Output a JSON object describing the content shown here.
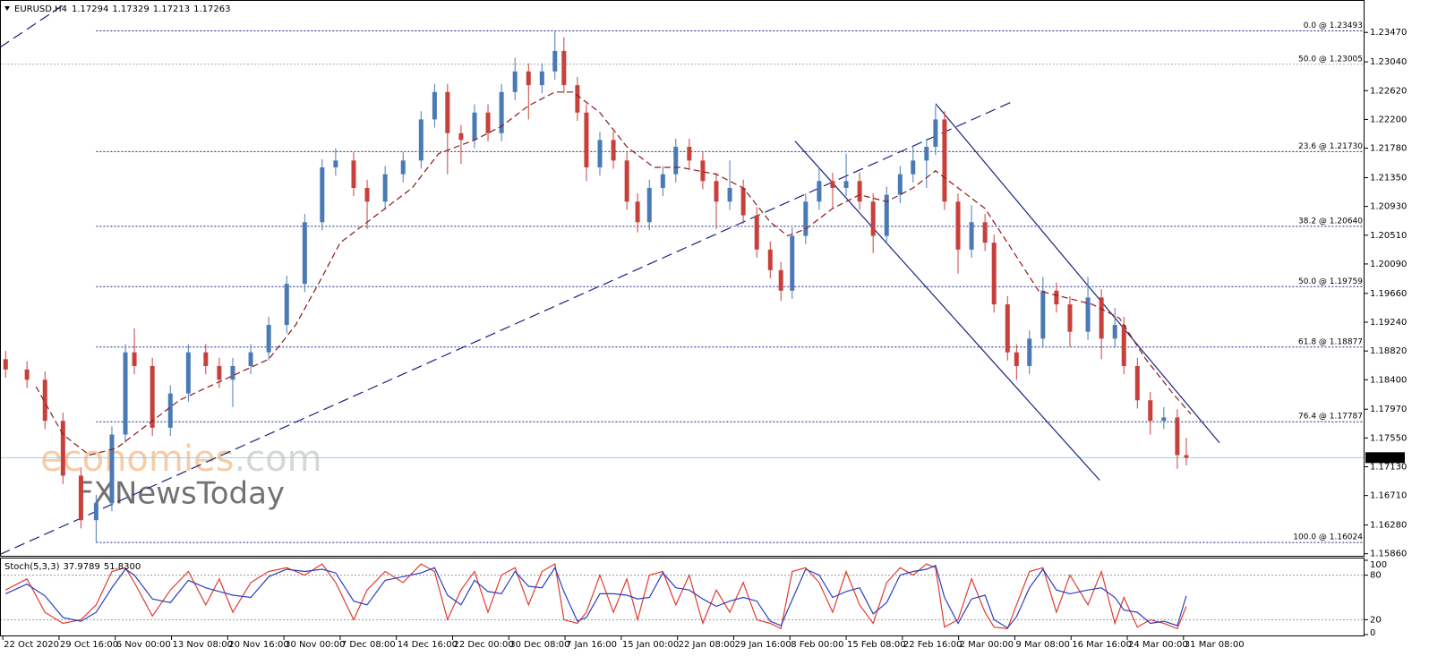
{
  "header": {
    "symbol": "EURUSD,H4",
    "ohlc": [
      1.17294,
      1.17329,
      1.17213,
      1.17263
    ]
  },
  "chart_data": [
    {
      "type": "candlestick",
      "up_color": "#4a7ab5",
      "down_color": "#c8403c",
      "last_price_color": "#8fd3e8",
      "xlim": [
        -0.05,
        24.22
      ],
      "ylim": [
        1.1583,
        1.2393
      ],
      "xticks": [
        {
          "value": 0,
          "label": "22 Oct 2020"
        },
        {
          "value": 1,
          "label": "29 Oct 16:00"
        },
        {
          "value": 2,
          "label": "6 Nov 00:00"
        },
        {
          "value": 3,
          "label": "13 Nov 08:00"
        },
        {
          "value": 4,
          "label": "20 Nov 16:00"
        },
        {
          "value": 5,
          "label": "30 Nov 00:00"
        },
        {
          "value": 6,
          "label": "7 Dec 08:00"
        },
        {
          "value": 7,
          "label": "14 Dec 16:00"
        },
        {
          "value": 8,
          "label": "22 Dec 00:00"
        },
        {
          "value": 9,
          "label": "30 Dec 08:00"
        },
        {
          "value": 10,
          "label": "7 Jan 16:00"
        },
        {
          "value": 11,
          "label": "15 Jan 00:00"
        },
        {
          "value": 12,
          "label": "22 Jan 08:00"
        },
        {
          "value": 13,
          "label": "29 Jan 16:00"
        },
        {
          "value": 14,
          "label": "8 Feb 00:00"
        },
        {
          "value": 15,
          "label": "15 Feb 08:00"
        },
        {
          "value": 16,
          "label": "22 Feb 16:00"
        },
        {
          "value": 17,
          "label": "2 Mar 00:00"
        },
        {
          "value": 18,
          "label": "9 Mar 08:00"
        },
        {
          "value": 19,
          "label": "16 Mar 16:00"
        },
        {
          "value": 20,
          "label": "24 Mar 00:00"
        },
        {
          "value": 21,
          "label": "31 Mar 08:00"
        }
      ],
      "yticks": [
        {
          "value": 1.1586,
          "label": "1.15860"
        },
        {
          "value": 1.1628,
          "label": "1.16280"
        },
        {
          "value": 1.1671,
          "label": "1.16710"
        },
        {
          "value": 1.1713,
          "label": "1.17130"
        },
        {
          "value": 1.1755,
          "label": "1.17550"
        },
        {
          "value": 1.1797,
          "label": "1.17970"
        },
        {
          "value": 1.184,
          "label": "1.18400"
        },
        {
          "value": 1.1882,
          "label": "1.18820"
        },
        {
          "value": 1.1924,
          "label": "1.19240"
        },
        {
          "value": 1.1966,
          "label": "1.19660"
        },
        {
          "value": 1.2009,
          "label": "1.20090"
        },
        {
          "value": 1.2051,
          "label": "1.20510"
        },
        {
          "value": 1.2093,
          "label": "1.20930"
        },
        {
          "value": 1.2135,
          "label": "1.21350"
        },
        {
          "value": 1.2178,
          "label": "1.21780"
        },
        {
          "value": 1.222,
          "label": "1.22200"
        },
        {
          "value": 1.2262,
          "label": "1.22620"
        },
        {
          "value": 1.2304,
          "label": "1.23040"
        },
        {
          "value": 1.2347,
          "label": "1.23470"
        }
      ],
      "x": [
        0.05,
        0.43,
        0.75,
        1.07,
        1.39,
        1.66,
        1.94,
        2.18,
        2.34,
        2.66,
        2.98,
        3.3,
        3.61,
        3.85,
        4.09,
        4.41,
        4.73,
        5.05,
        5.37,
        5.68,
        5.92,
        6.24,
        6.48,
        6.8,
        7.12,
        7.44,
        7.68,
        7.91,
        8.15,
        8.39,
        8.63,
        8.87,
        9.11,
        9.35,
        9.59,
        9.82,
        9.98,
        10.22,
        10.38,
        10.62,
        10.86,
        11.1,
        11.29,
        11.5,
        11.74,
        11.97,
        12.21,
        12.45,
        12.69,
        12.93,
        13.17,
        13.41,
        13.65,
        13.84,
        14.04,
        14.28,
        14.52,
        14.76,
        15.0,
        15.24,
        15.48,
        15.72,
        15.96,
        16.19,
        16.43,
        16.59,
        16.75,
        16.99,
        17.23,
        17.47,
        17.63,
        17.87,
        18.03,
        18.26,
        18.5,
        18.74,
        18.98,
        19.3,
        19.54,
        19.78,
        19.94,
        20.18,
        20.41,
        20.65,
        20.89,
        21.05
      ],
      "open": [
        1.187,
        1.1855,
        1.184,
        1.178,
        1.17,
        1.1635,
        1.166,
        1.176,
        1.188,
        1.186,
        1.177,
        1.182,
        1.188,
        1.186,
        1.184,
        1.186,
        1.188,
        1.192,
        1.198,
        1.207,
        1.215,
        1.216,
        1.212,
        1.21,
        1.214,
        1.216,
        1.222,
        1.226,
        1.22,
        1.219,
        1.223,
        1.22,
        1.226,
        1.229,
        1.227,
        1.229,
        1.232,
        1.227,
        1.223,
        1.215,
        1.219,
        1.216,
        1.21,
        1.207,
        1.212,
        1.214,
        1.218,
        1.216,
        1.213,
        1.21,
        1.212,
        1.208,
        1.203,
        1.2,
        1.197,
        1.205,
        1.21,
        1.213,
        1.212,
        1.213,
        1.21,
        1.205,
        1.211,
        1.214,
        1.216,
        1.218,
        1.222,
        1.21,
        1.203,
        1.207,
        1.204,
        1.195,
        1.188,
        1.186,
        1.19,
        1.197,
        1.195,
        1.191,
        1.196,
        1.19,
        1.192,
        1.186,
        1.181,
        1.178,
        1.1785,
        1.173
      ],
      "high": [
        1.1882,
        1.1867,
        1.1852,
        1.1792,
        1.1712,
        1.1672,
        1.1772,
        1.1892,
        1.1915,
        1.1872,
        1.1832,
        1.1892,
        1.1892,
        1.1872,
        1.1872,
        1.1892,
        1.1932,
        1.1992,
        1.2082,
        1.2162,
        1.2178,
        1.2172,
        1.2132,
        1.2152,
        1.2172,
        1.2232,
        1.2272,
        1.2272,
        1.2212,
        1.2242,
        1.2242,
        1.2272,
        1.231,
        1.2302,
        1.2302,
        1.2349,
        1.234,
        1.2282,
        1.2242,
        1.2202,
        1.2202,
        1.2172,
        1.2112,
        1.2132,
        1.2152,
        1.2192,
        1.2192,
        1.2172,
        1.2142,
        1.216,
        1.2132,
        1.2092,
        1.2042,
        1.2012,
        1.2062,
        1.2112,
        1.215,
        1.2142,
        1.217,
        1.2142,
        1.2112,
        1.2122,
        1.2152,
        1.218,
        1.2192,
        1.224,
        1.2232,
        1.2112,
        1.2095,
        1.2082,
        1.2052,
        1.1962,
        1.1892,
        1.1912,
        1.199,
        1.1982,
        1.1962,
        1.199,
        1.1972,
        1.1945,
        1.1932,
        1.1872,
        1.1822,
        1.18,
        1.1797,
        1.1755
      ],
      "low": [
        1.1843,
        1.1828,
        1.1768,
        1.1688,
        1.1623,
        1.1603,
        1.1648,
        1.1748,
        1.1848,
        1.1758,
        1.1758,
        1.1808,
        1.1848,
        1.1828,
        1.18,
        1.1848,
        1.1868,
        1.1908,
        1.1968,
        1.2058,
        1.2138,
        1.2108,
        1.206,
        1.2088,
        1.2128,
        1.2148,
        1.2208,
        1.214,
        1.2155,
        1.2178,
        1.2188,
        1.2188,
        1.2248,
        1.222,
        1.2258,
        1.2278,
        1.2258,
        1.2218,
        1.213,
        1.2138,
        1.2148,
        1.2088,
        1.2055,
        1.2058,
        1.2108,
        1.2128,
        1.2148,
        1.2118,
        1.206,
        1.2088,
        1.2068,
        1.2018,
        1.1988,
        1.1955,
        1.1958,
        1.2038,
        1.2088,
        1.209,
        1.2108,
        1.2088,
        1.2025,
        1.2038,
        1.2098,
        1.2128,
        1.212,
        1.2168,
        1.2088,
        1.1995,
        1.2018,
        1.2028,
        1.1938,
        1.1868,
        1.184,
        1.1848,
        1.1888,
        1.1938,
        1.1888,
        1.1898,
        1.187,
        1.1888,
        1.1848,
        1.1798,
        1.176,
        1.1768,
        1.171,
        1.1715
      ],
      "close": [
        1.1855,
        1.184,
        1.178,
        1.17,
        1.1635,
        1.166,
        1.176,
        1.188,
        1.186,
        1.177,
        1.182,
        1.188,
        1.186,
        1.184,
        1.186,
        1.188,
        1.192,
        1.198,
        1.207,
        1.215,
        1.216,
        1.212,
        1.21,
        1.214,
        1.216,
        1.222,
        1.226,
        1.22,
        1.219,
        1.223,
        1.22,
        1.226,
        1.229,
        1.227,
        1.229,
        1.232,
        1.227,
        1.223,
        1.215,
        1.219,
        1.216,
        1.21,
        1.207,
        1.212,
        1.214,
        1.218,
        1.216,
        1.213,
        1.21,
        1.212,
        1.208,
        1.203,
        1.2,
        1.197,
        1.205,
        1.21,
        1.213,
        1.212,
        1.213,
        1.21,
        1.205,
        1.211,
        1.214,
        1.216,
        1.218,
        1.222,
        1.21,
        1.203,
        1.207,
        1.204,
        1.195,
        1.188,
        1.186,
        1.19,
        1.197,
        1.195,
        1.191,
        1.196,
        1.19,
        1.192,
        1.186,
        1.181,
        1.178,
        1.1785,
        1.173,
        1.1726
      ],
      "moving_average": {
        "color": "#8b1a1a",
        "x": [
          0.59,
          1.07,
          1.54,
          2.02,
          2.66,
          3.14,
          3.93,
          4.73,
          5.21,
          5.68,
          6.0,
          6.64,
          7.28,
          7.75,
          8.39,
          8.87,
          9.35,
          9.82,
          10.14,
          10.62,
          11.1,
          11.58,
          12.05,
          12.69,
          13.17,
          13.65,
          13.96,
          14.28,
          14.76,
          15.24,
          15.72,
          16.19,
          16.59,
          16.99,
          17.47,
          17.95,
          18.42,
          18.9,
          19.38,
          19.86,
          20.33,
          20.81,
          21.13
        ],
        "values": [
          1.183,
          1.176,
          1.173,
          1.174,
          1.178,
          1.181,
          1.184,
          1.187,
          1.192,
          1.199,
          1.204,
          1.208,
          1.212,
          1.217,
          1.219,
          1.221,
          1.224,
          1.226,
          1.226,
          1.223,
          1.218,
          1.215,
          1.215,
          1.214,
          1.212,
          1.207,
          1.205,
          1.206,
          1.209,
          1.211,
          1.21,
          1.212,
          1.2145,
          1.212,
          1.209,
          1.203,
          1.197,
          1.196,
          1.195,
          1.193,
          1.187,
          1.182,
          1.179
        ]
      },
      "fibonacci": {
        "color": "#1a237e",
        "start_x": 1.66,
        "levels": [
          {
            "label": "0.0 @ 1.23493",
            "value": 1.23493
          },
          {
            "label": "50.0 @ 1.23005",
            "value": 1.23005,
            "color": "#aaaaaa",
            "start_x": -0.05
          },
          {
            "label": "23.6 @ 1.21730",
            "value": 1.2173
          },
          {
            "label": "38.2 @ 1.20640",
            "value": 1.2064
          },
          {
            "label": "50.0 @ 1.19759",
            "value": 1.19759
          },
          {
            "label": "61.8 @ 1.18877",
            "value": 1.18877
          },
          {
            "label": "76.4 @ 1.17787",
            "value": 1.17787
          },
          {
            "label": "100.0 @ 1.16024",
            "value": 1.16024
          }
        ]
      },
      "trendlines": [
        {
          "x": [
            -0.05,
            17.95
          ],
          "y": [
            1.15851,
            1.22457
          ],
          "dashed": true,
          "color": "#1a237e"
        },
        {
          "x": [
            -0.05,
            1.07
          ],
          "y": [
            1.23252,
            1.23865
          ],
          "dashed": true,
          "color": "#1a237e"
        },
        {
          "x": [
            14.09,
            19.51
          ],
          "y": [
            1.21884,
            1.16932
          ],
          "dashed": false,
          "color": "#1a237e"
        },
        {
          "x": [
            16.59,
            21.64
          ],
          "y": [
            1.22431,
            1.1748
          ],
          "dashed": false,
          "color": "#1a237e"
        }
      ],
      "watermark": {
        "brand": "economies",
        "domain": ".com",
        "second": "FXNewsToday"
      }
    },
    {
      "type": "stochastic",
      "title": "Stoch(5,3,3)",
      "readings": [
        {
          "value": 37.9789,
          "label": "37.9789"
        },
        {
          "value": 51.83,
          "label": "51.8300"
        }
      ],
      "ylim": [
        0,
        100
      ],
      "yticks": [
        0,
        20,
        80,
        100
      ],
      "levels": [
        20,
        80
      ],
      "series": [
        {
          "color": "#e03c31",
          "values": [
            60,
            75,
            30,
            15,
            20,
            40,
            85,
            90,
            70,
            25,
            60,
            85,
            40,
            75,
            30,
            70,
            85,
            90,
            80,
            95,
            70,
            20,
            60,
            85,
            70,
            95,
            85,
            20,
            60,
            85,
            30,
            80,
            90,
            40,
            85,
            95,
            20,
            15,
            30,
            80,
            30,
            75,
            20,
            80,
            85,
            40,
            80,
            15,
            60,
            30,
            70,
            20,
            15,
            8,
            85,
            90,
            70,
            30,
            85,
            40,
            15,
            70,
            90,
            80,
            95,
            90,
            10,
            20,
            75,
            30,
            10,
            8,
            40,
            85,
            90,
            30,
            80,
            40,
            85,
            15,
            50,
            10,
            20,
            15,
            8,
            38
          ]
        },
        {
          "color": "#2a3fbf",
          "values": [
            55,
            68,
            52,
            23,
            18,
            30,
            63,
            88,
            80,
            48,
            43,
            73,
            63,
            58,
            53,
            50,
            78,
            88,
            85,
            88,
            83,
            45,
            40,
            73,
            78,
            83,
            90,
            53,
            40,
            73,
            58,
            55,
            85,
            65,
            63,
            90,
            58,
            18,
            23,
            55,
            55,
            53,
            48,
            50,
            83,
            63,
            60,
            48,
            38,
            45,
            50,
            45,
            18,
            12,
            47,
            88,
            80,
            50,
            58,
            63,
            28,
            43,
            80,
            85,
            88,
            93,
            50,
            15,
            48,
            53,
            20,
            9,
            24,
            63,
            88,
            60,
            55,
            60,
            63,
            50,
            33,
            30,
            15,
            18,
            12,
            52
          ]
        }
      ]
    }
  ]
}
